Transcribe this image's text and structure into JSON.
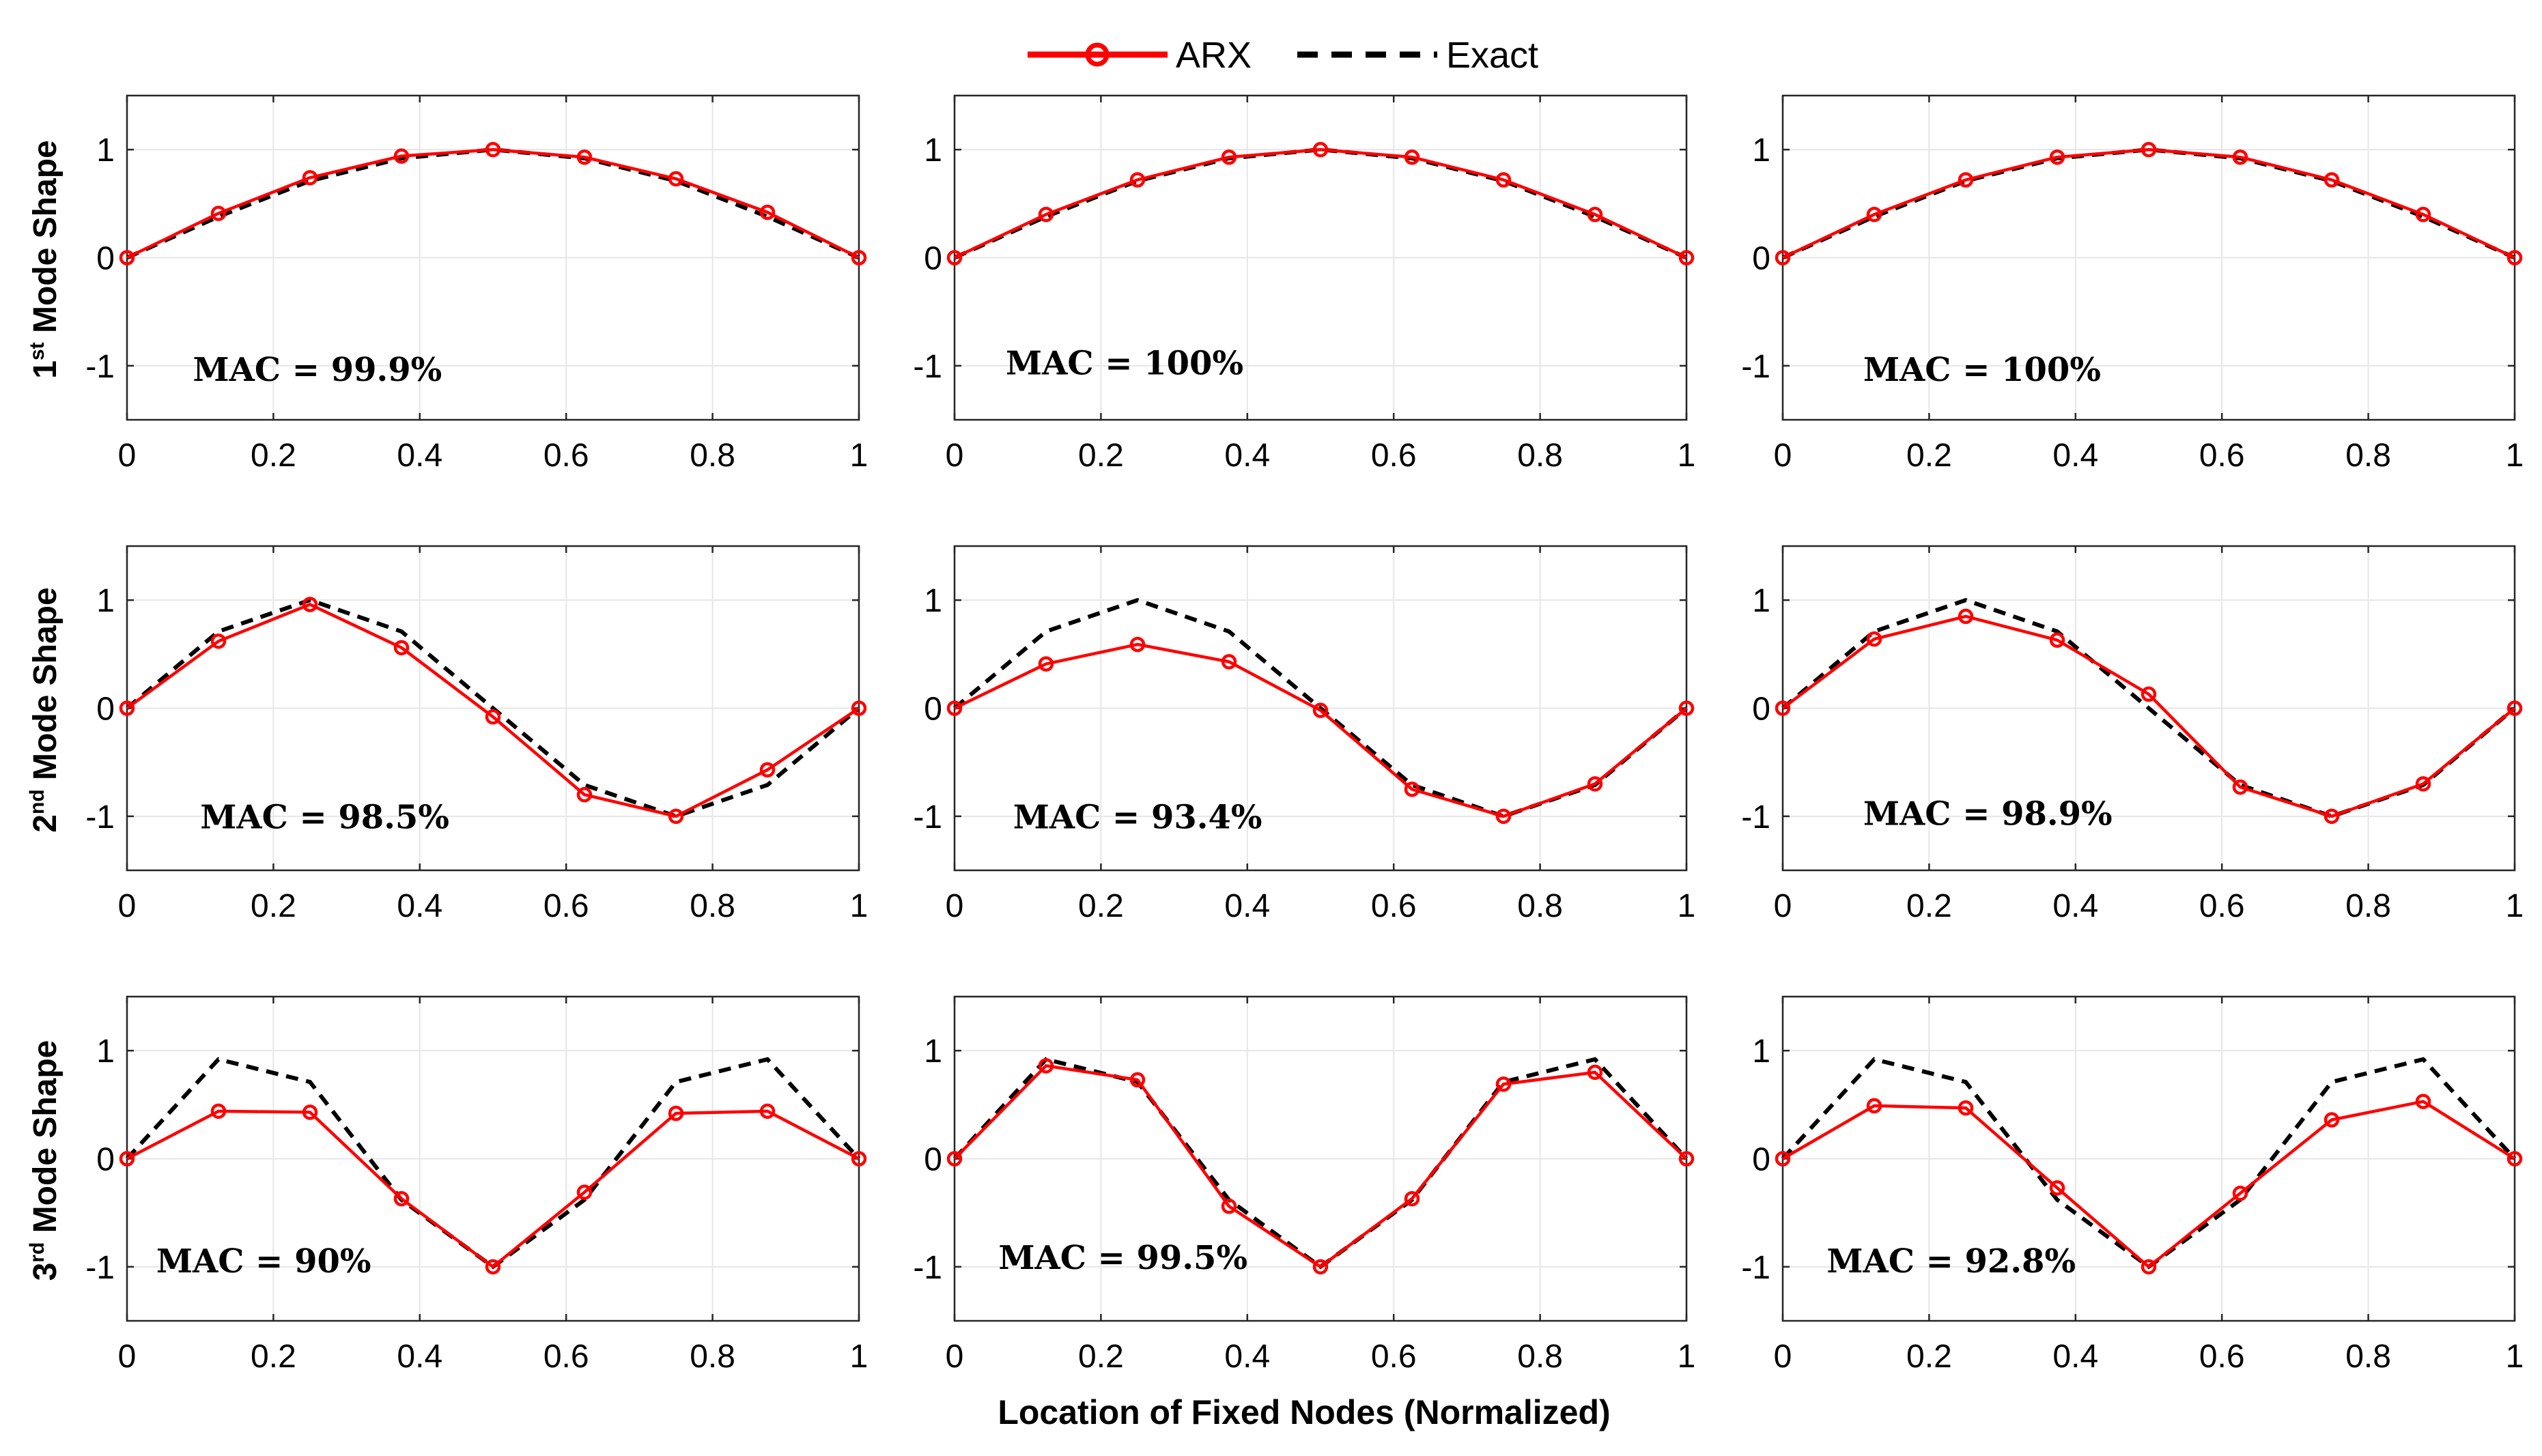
{
  "legend": {
    "arx_label": "ARX",
    "exact_label": "Exact"
  },
  "colors": {
    "arx": "#ff0000",
    "exact": "#000000"
  },
  "row_labels": [
    {
      "num": "1",
      "sup": "st",
      "text": " Mode Shape"
    },
    {
      "num": "2",
      "sup": "nd",
      "text": " Mode Shape"
    },
    {
      "num": "3",
      "sup": "rd",
      "text": " Mode Shape"
    }
  ],
  "xlabel": "Location of Fixed Nodes (Normalized)",
  "chart_data": {
    "type": "line",
    "grid": "3x3 subplots",
    "x": [
      0,
      0.125,
      0.25,
      0.375,
      0.5,
      0.625,
      0.75,
      0.875,
      1
    ],
    "xlim": [
      0,
      1
    ],
    "ylim": [
      -1.5,
      1.5
    ],
    "xticks": [
      "0",
      "0.2",
      "0.4",
      "0.6",
      "0.8",
      "1"
    ],
    "yticks": [
      "-1",
      "0",
      "1"
    ],
    "panels": [
      {
        "row": 0,
        "col": 0,
        "mac": "MAC = 99.9%",
        "arx": [
          0,
          0.41,
          0.74,
          0.94,
          1.0,
          0.93,
          0.73,
          0.42,
          0
        ],
        "exact": [
          0,
          0.38,
          0.71,
          0.92,
          1.0,
          0.92,
          0.71,
          0.38,
          0
        ]
      },
      {
        "row": 0,
        "col": 1,
        "mac": "MAC = 100%",
        "arx": [
          0,
          0.4,
          0.72,
          0.93,
          1.0,
          0.93,
          0.72,
          0.4,
          0
        ],
        "exact": [
          0,
          0.38,
          0.71,
          0.92,
          1.0,
          0.92,
          0.71,
          0.38,
          0
        ]
      },
      {
        "row": 0,
        "col": 2,
        "mac": "MAC = 100%",
        "arx": [
          0,
          0.4,
          0.72,
          0.93,
          1.0,
          0.93,
          0.72,
          0.4,
          0
        ],
        "exact": [
          0,
          0.38,
          0.71,
          0.92,
          1.0,
          0.92,
          0.71,
          0.38,
          0
        ]
      },
      {
        "row": 1,
        "col": 0,
        "mac": "MAC = 98.5%",
        "arx": [
          0,
          0.62,
          0.96,
          0.56,
          -0.08,
          -0.8,
          -1.0,
          -0.57,
          0
        ],
        "exact": [
          0,
          0.71,
          1.0,
          0.71,
          0,
          -0.71,
          -1.0,
          -0.71,
          0
        ]
      },
      {
        "row": 1,
        "col": 1,
        "mac": "MAC = 93.4%",
        "arx": [
          0,
          0.41,
          0.59,
          0.43,
          -0.02,
          -0.75,
          -1.0,
          -0.7,
          0
        ],
        "exact": [
          0,
          0.71,
          1.0,
          0.71,
          0,
          -0.71,
          -1.0,
          -0.71,
          0
        ]
      },
      {
        "row": 1,
        "col": 2,
        "mac": "MAC = 98.9%",
        "arx": [
          0,
          0.64,
          0.85,
          0.63,
          0.13,
          -0.73,
          -1.0,
          -0.7,
          0
        ],
        "exact": [
          0,
          0.71,
          1.0,
          0.71,
          0,
          -0.71,
          -1.0,
          -0.71,
          0
        ]
      },
      {
        "row": 2,
        "col": 0,
        "mac": "MAC = 90%",
        "arx": [
          0,
          0.44,
          0.43,
          -0.37,
          -1.0,
          -0.31,
          0.42,
          0.44,
          0
        ],
        "exact": [
          0,
          0.92,
          0.71,
          -0.38,
          -1.0,
          -0.38,
          0.71,
          0.92,
          0
        ]
      },
      {
        "row": 2,
        "col": 1,
        "mac": "MAC = 99.5%",
        "arx": [
          0,
          0.86,
          0.73,
          -0.44,
          -1.0,
          -0.37,
          0.69,
          0.8,
          0
        ],
        "exact": [
          0,
          0.92,
          0.71,
          -0.38,
          -1.0,
          -0.38,
          0.71,
          0.92,
          0
        ]
      },
      {
        "row": 2,
        "col": 2,
        "mac": "MAC = 92.8%",
        "arx": [
          0,
          0.49,
          0.47,
          -0.27,
          -1.0,
          -0.32,
          0.36,
          0.53,
          0
        ],
        "exact": [
          0,
          0.92,
          0.71,
          -0.38,
          -1.0,
          -0.38,
          0.71,
          0.92,
          0
        ]
      }
    ]
  }
}
